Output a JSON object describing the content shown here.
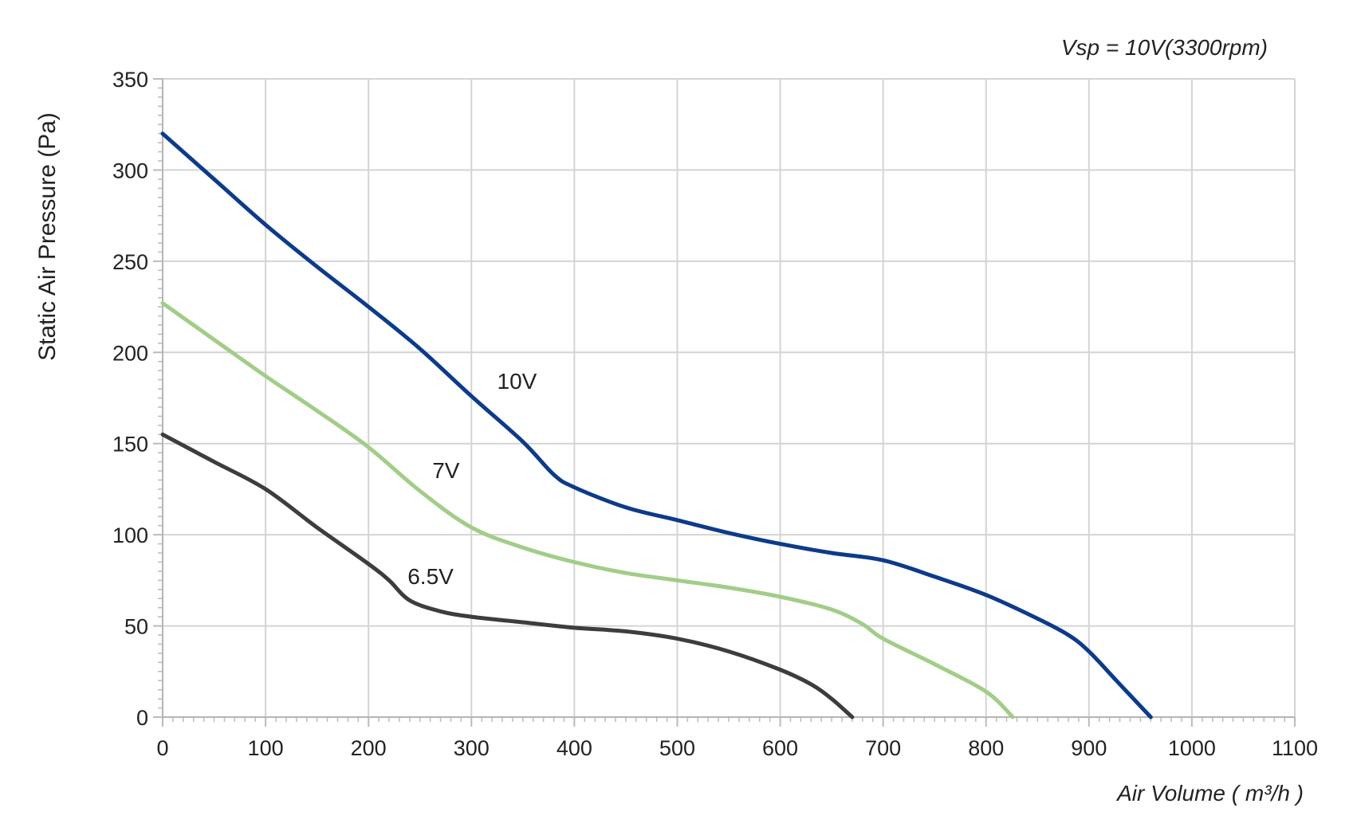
{
  "chart_data": {
    "type": "line",
    "title": "Vsp = 10V(3300rpm)",
    "xlabel": "Air Volume ( m³/h )",
    "ylabel": "Static Air Pressure  (Pa)",
    "xlim": [
      0,
      1100
    ],
    "ylim": [
      0,
      350
    ],
    "xticks": [
      "0",
      "100",
      "200",
      "300",
      "400",
      "500",
      "600",
      "700",
      "800",
      "900",
      "1000",
      "1100"
    ],
    "yticks": [
      "0",
      "50",
      "100",
      "150",
      "200",
      "250",
      "300",
      "350"
    ],
    "grid": true,
    "series": [
      {
        "name": "10V",
        "color": "#0d3b8a",
        "label_at": [
          325,
          180
        ],
        "points": [
          [
            0,
            320
          ],
          [
            50,
            295
          ],
          [
            100,
            270
          ],
          [
            150,
            247
          ],
          [
            200,
            225
          ],
          [
            250,
            202
          ],
          [
            300,
            176
          ],
          [
            350,
            151
          ],
          [
            380,
            133
          ],
          [
            400,
            126
          ],
          [
            450,
            115
          ],
          [
            500,
            108
          ],
          [
            550,
            101
          ],
          [
            600,
            95
          ],
          [
            650,
            90
          ],
          [
            700,
            86
          ],
          [
            750,
            77
          ],
          [
            800,
            67
          ],
          [
            850,
            54
          ],
          [
            880,
            45
          ],
          [
            900,
            36
          ],
          [
            930,
            18
          ],
          [
            960,
            0
          ]
        ]
      },
      {
        "name": "7V",
        "color": "#a2cd88",
        "label_at": [
          262,
          131
        ],
        "points": [
          [
            0,
            227
          ],
          [
            50,
            207
          ],
          [
            100,
            187
          ],
          [
            150,
            168
          ],
          [
            200,
            148
          ],
          [
            250,
            124
          ],
          [
            300,
            104
          ],
          [
            350,
            93
          ],
          [
            400,
            85
          ],
          [
            450,
            79
          ],
          [
            500,
            75
          ],
          [
            550,
            71
          ],
          [
            600,
            66
          ],
          [
            650,
            59
          ],
          [
            680,
            51
          ],
          [
            700,
            43
          ],
          [
            750,
            29
          ],
          [
            800,
            14
          ],
          [
            826,
            0
          ]
        ]
      },
      {
        "name": "6.5V",
        "color": "#3d3d3d",
        "label_at": [
          238,
          73
        ],
        "points": [
          [
            0,
            155
          ],
          [
            50,
            140
          ],
          [
            100,
            125
          ],
          [
            150,
            104
          ],
          [
            200,
            84
          ],
          [
            220,
            75
          ],
          [
            240,
            64
          ],
          [
            270,
            58
          ],
          [
            300,
            55
          ],
          [
            350,
            52
          ],
          [
            400,
            49
          ],
          [
            450,
            47
          ],
          [
            500,
            43
          ],
          [
            550,
            36
          ],
          [
            600,
            26
          ],
          [
            630,
            18
          ],
          [
            650,
            10
          ],
          [
            670,
            0
          ]
        ]
      }
    ]
  }
}
